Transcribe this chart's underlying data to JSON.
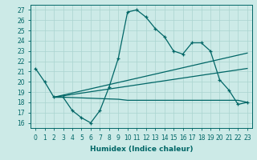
{
  "xlabel": "Humidex (Indice chaleur)",
  "background_color": "#cceae7",
  "grid_color": "#aad4d0",
  "line_color": "#006666",
  "xlim": [
    -0.5,
    23.5
  ],
  "ylim": [
    15.5,
    27.5
  ],
  "xticks": [
    0,
    1,
    2,
    3,
    4,
    5,
    6,
    7,
    8,
    9,
    10,
    11,
    12,
    13,
    14,
    15,
    16,
    17,
    18,
    19,
    20,
    21,
    22,
    23
  ],
  "yticks": [
    16,
    17,
    18,
    19,
    20,
    21,
    22,
    23,
    24,
    25,
    26,
    27
  ],
  "line1_x": [
    0,
    1,
    2,
    3,
    4,
    5,
    6,
    7,
    8,
    9,
    10,
    11,
    12,
    13,
    14,
    15,
    16,
    17,
    18,
    19,
    20,
    21,
    22,
    23
  ],
  "line1_y": [
    21.3,
    20.0,
    18.5,
    18.5,
    17.2,
    16.5,
    16.0,
    17.2,
    19.5,
    22.3,
    26.8,
    27.0,
    26.3,
    25.2,
    24.4,
    23.0,
    22.7,
    23.8,
    23.8,
    23.0,
    20.2,
    19.2,
    17.8,
    18.0
  ],
  "line2_x": [
    2,
    3,
    9,
    10,
    11,
    12,
    13,
    14,
    15,
    16,
    17,
    18,
    19,
    20,
    21,
    22,
    23
  ],
  "line2_y": [
    18.5,
    18.5,
    18.3,
    18.2,
    18.2,
    18.2,
    18.2,
    18.2,
    18.2,
    18.2,
    18.2,
    18.2,
    18.2,
    18.2,
    18.2,
    18.2,
    18.0
  ],
  "line3_x": [
    2,
    23
  ],
  "line3_y": [
    18.5,
    22.8
  ],
  "line4_x": [
    2,
    23
  ],
  "line4_y": [
    18.5,
    21.3
  ]
}
